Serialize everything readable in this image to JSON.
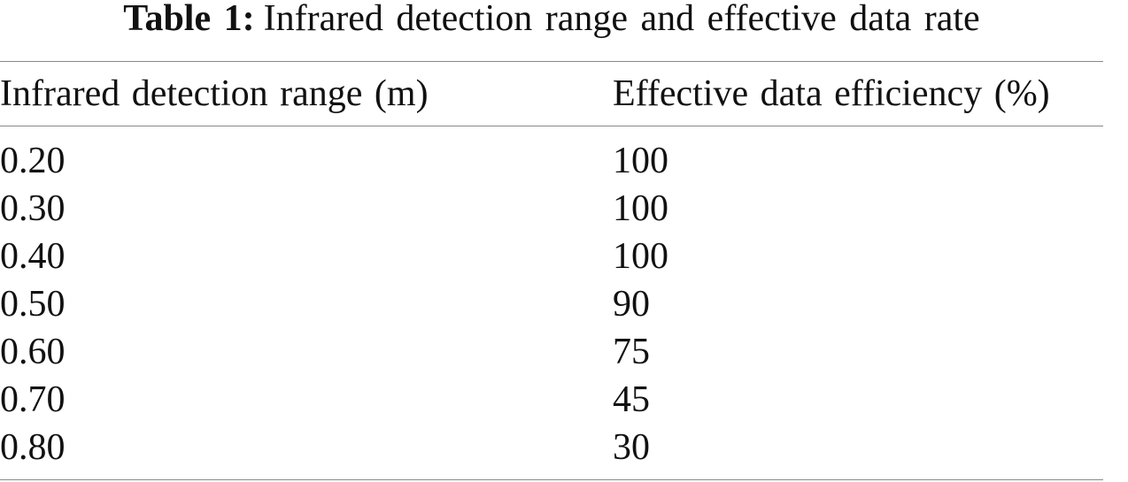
{
  "caption": {
    "label": "Table 1:",
    "text": "Infrared detection range and effective data rate"
  },
  "table": {
    "header": [
      "Infrared detection range (m)",
      "Effective data efficiency (%)"
    ],
    "rows": [
      [
        "0.20",
        "100"
      ],
      [
        "0.30",
        "100"
      ],
      [
        "0.40",
        "100"
      ],
      [
        "0.50",
        "90"
      ],
      [
        "0.60",
        "75"
      ],
      [
        "0.70",
        "45"
      ],
      [
        "0.80",
        "30"
      ]
    ]
  }
}
